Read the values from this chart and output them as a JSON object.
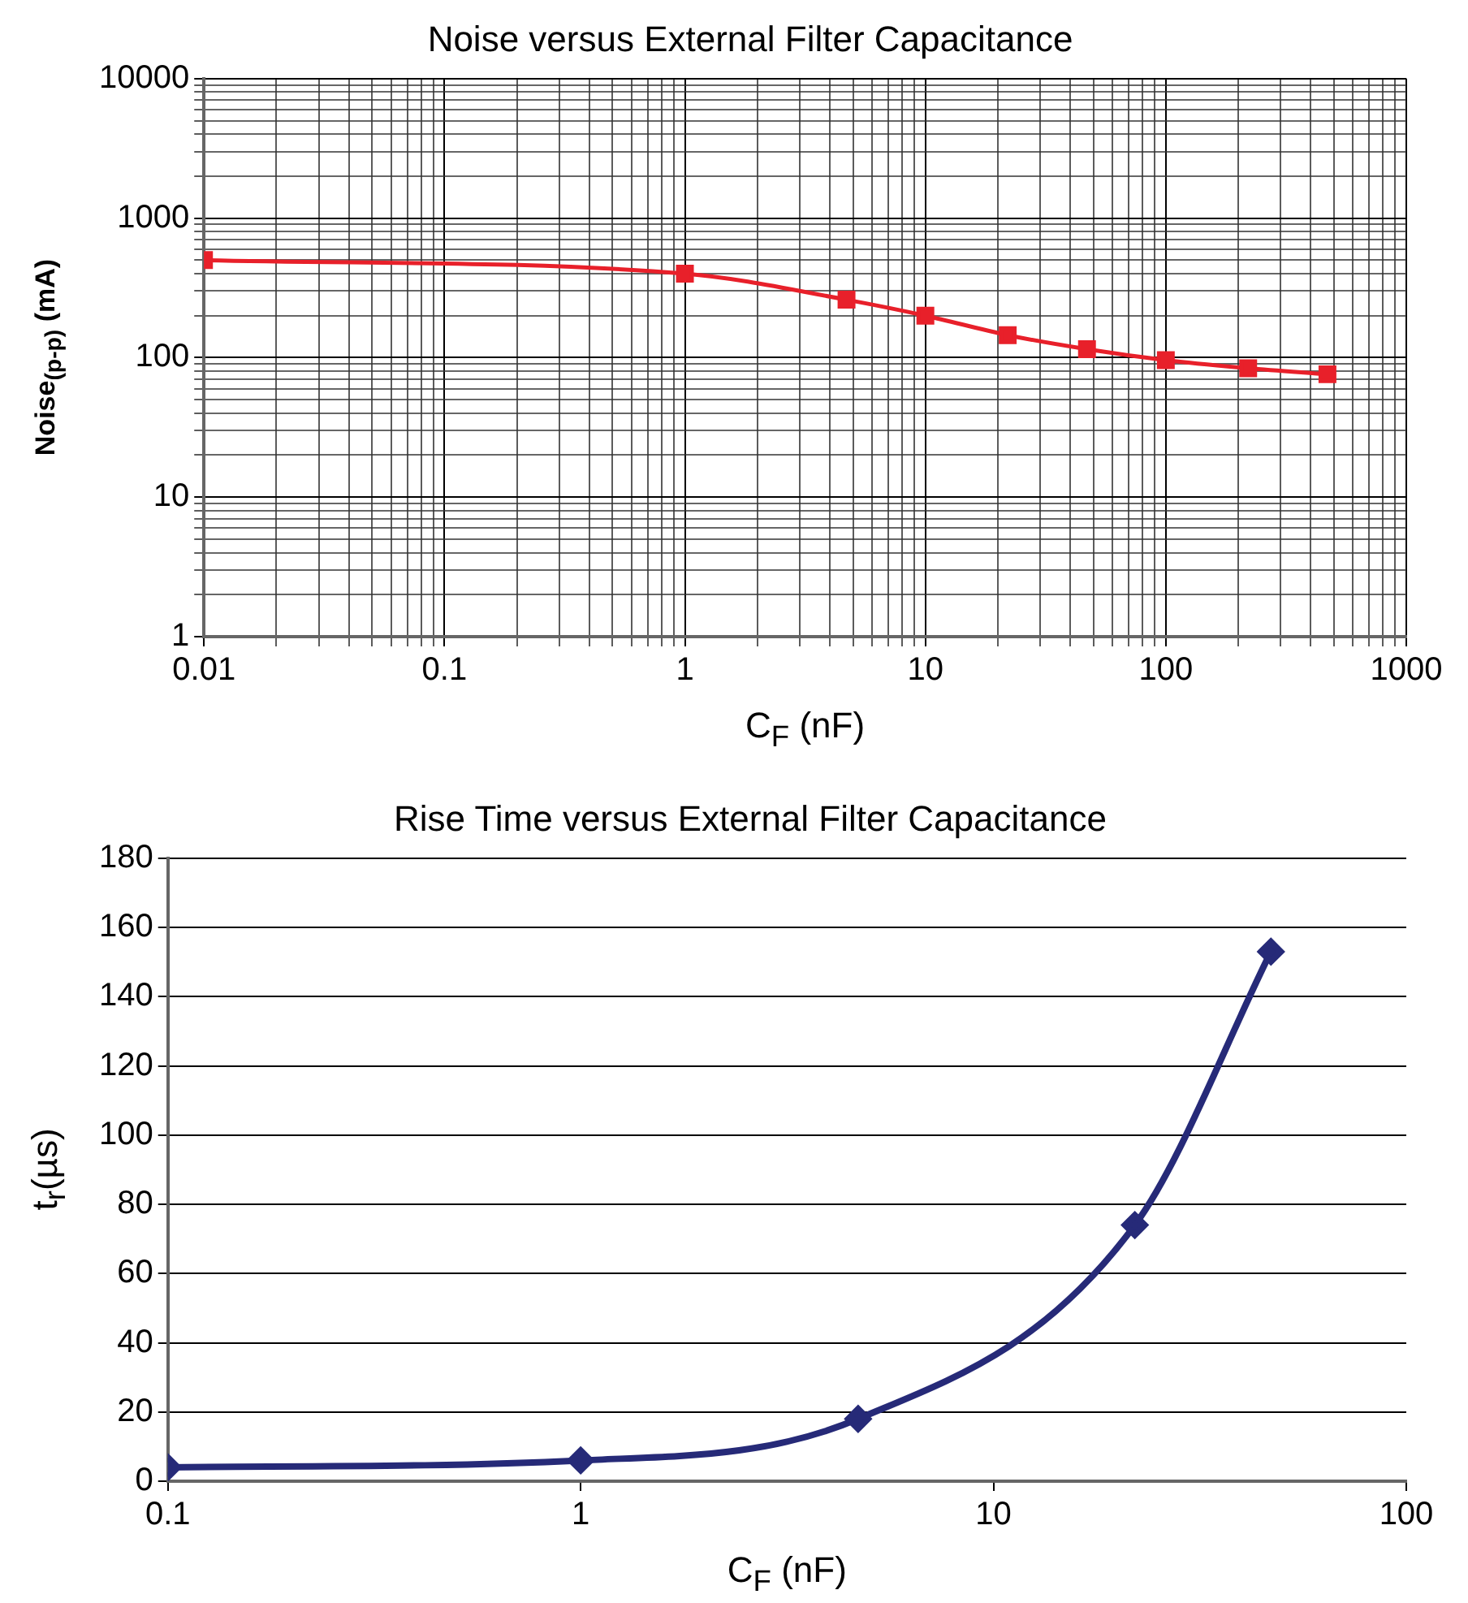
{
  "chart_data": [
    {
      "type": "line",
      "title": "Noise versus External Filter Capacitance",
      "xlabel": "C$_{F}$ (nF)",
      "ylabel": "Noise$_{(p-p)}$ (mA)",
      "log": "xy",
      "xlim": [
        0.01,
        1000
      ],
      "xticks": [
        0.01,
        0.1,
        1,
        10,
        100,
        1000
      ],
      "ylim": [
        1,
        10000
      ],
      "yticks": [
        1,
        10,
        100,
        1000,
        10000
      ],
      "grid": true,
      "legend": false,
      "marker": "square",
      "series": [
        {
          "color": "#e8202a",
          "x": [
            0.01,
            1,
            4.7,
            10,
            22,
            47,
            100,
            220,
            470
          ],
          "values": [
            500,
            400,
            260,
            200,
            145,
            115,
            96,
            84,
            76
          ]
        }
      ]
    },
    {
      "type": "line",
      "title": "Rise Time versus External Filter Capacitance",
      "xlabel": "C$_{F}$ (nF)",
      "ylabel": "t$_{r}$(µs)",
      "log": "x",
      "xlim": [
        0.1,
        100
      ],
      "xticks": [
        0.1,
        1,
        10,
        100
      ],
      "ylim": [
        0,
        180
      ],
      "yticks": [
        0,
        20,
        40,
        60,
        80,
        100,
        120,
        140,
        160,
        180
      ],
      "grid": "y",
      "legend": false,
      "marker": "diamond",
      "series": [
        {
          "color": "#262a78",
          "x": [
            0.1,
            1,
            4.7,
            22,
            47
          ],
          "values": [
            4,
            6,
            18,
            74,
            153
          ]
        }
      ]
    }
  ]
}
